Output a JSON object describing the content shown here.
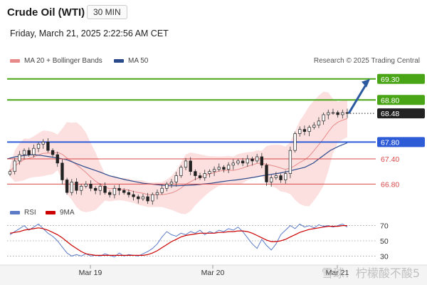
{
  "header": {
    "instrument": "Crude Oil (WTI)",
    "timeframe": "30 MIN",
    "datetime": "Friday, March 21, 2025 2:22:56 AM CET"
  },
  "legend": {
    "ma20_bb_label": "MA 20 + Bollinger Bands",
    "ma50_label": "MA 50",
    "credit": "Research © 2025 Trading Central",
    "ma20_color": "#e88a8a",
    "ma50_color": "#2b4a8b"
  },
  "rsi_legend": {
    "rsi_label": "RSI",
    "ma9_label": "9MA",
    "rsi_color": "#5b7bc7",
    "ma9_color": "#cc0000"
  },
  "watermark": "雪球：柠檬酸不酸5",
  "chart_data": [
    {
      "type": "line",
      "subtype": "candlestick",
      "x_tick_labels": [
        "Mar 19",
        "Mar 20",
        "Mar 21"
      ],
      "price_levels": [
        {
          "value": 69.3,
          "label": "69.30",
          "kind": "resistance",
          "color": "#4aa516"
        },
        {
          "value": 68.8,
          "label": "68.80",
          "kind": "resistance",
          "color": "#4aa516"
        },
        {
          "value": 68.48,
          "label": "68.48",
          "kind": "last_price",
          "color": "#222222"
        },
        {
          "value": 67.8,
          "label": "67.80",
          "kind": "pivot",
          "color": "#2e5bd6"
        },
        {
          "value": 67.4,
          "label": "67.40",
          "kind": "support",
          "color": "#d94a4a"
        },
        {
          "value": 66.8,
          "label": "66.80",
          "kind": "support",
          "color": "#d94a4a"
        }
      ],
      "close_series": [
        67.1,
        67.35,
        67.5,
        67.6,
        67.5,
        67.65,
        67.75,
        67.8,
        67.6,
        67.5,
        67.3,
        66.9,
        66.6,
        66.85,
        66.65,
        66.75,
        66.8,
        66.7,
        66.65,
        66.75,
        66.6,
        66.55,
        66.7,
        66.65,
        66.6,
        66.55,
        66.5,
        66.45,
        66.5,
        66.4,
        66.55,
        66.6,
        66.7,
        66.8,
        66.85,
        67.0,
        67.2,
        67.35,
        67.1,
        67.0,
        66.95,
        67.05,
        67.1,
        67.15,
        67.2,
        67.15,
        67.25,
        67.3,
        67.35,
        67.3,
        67.4,
        67.35,
        67.45,
        67.25,
        66.85,
        66.95,
        67.0,
        66.9,
        67.05,
        67.6,
        68.0,
        68.1,
        68.05,
        68.15,
        68.2,
        68.3,
        68.45,
        68.5,
        68.5,
        68.45,
        68.5,
        68.48
      ],
      "projection": {
        "from": 68.48,
        "to": 69.3
      },
      "ma50_series": [
        67.4,
        67.45,
        67.48,
        67.5,
        67.48,
        67.45,
        67.42,
        67.38,
        67.3,
        67.22,
        67.15,
        67.08,
        67.0,
        66.95,
        66.9,
        66.86,
        66.82,
        66.8,
        66.78,
        66.76,
        66.76,
        66.77,
        66.78,
        66.8,
        66.82,
        66.85,
        66.88,
        66.9,
        66.93,
        66.96,
        67.0,
        67.03,
        67.06,
        67.1,
        67.15,
        67.2,
        67.3,
        67.45,
        67.6,
        67.7,
        67.78
      ],
      "ylim": [
        66.4,
        69.55
      ],
      "rsi": {
        "levels": [
          {
            "value": 70,
            "label": "70"
          },
          {
            "value": 50,
            "label": "50"
          },
          {
            "value": 30,
            "label": "30"
          }
        ],
        "ylim": [
          22,
          78
        ],
        "rsi_values": [
          58,
          62,
          66,
          70,
          64,
          68,
          72,
          66,
          60,
          56,
          50,
          42,
          34,
          30,
          32,
          30,
          33,
          30,
          31,
          30,
          33,
          31,
          29,
          34,
          30,
          32,
          31,
          30,
          33,
          36,
          40,
          46,
          55,
          62,
          58,
          56,
          60,
          58,
          62,
          60,
          64,
          58,
          62,
          60,
          64,
          62,
          66,
          64,
          68,
          62,
          54,
          46,
          40,
          52,
          44,
          38,
          46,
          58,
          64,
          70,
          66,
          72,
          68,
          70,
          67,
          71,
          69,
          70,
          68,
          70,
          72,
          68
        ],
        "ma9_values": [
          60,
          61,
          62,
          64,
          65,
          66,
          67,
          66,
          64,
          61,
          58,
          54,
          49,
          44,
          40,
          36,
          33,
          32,
          31,
          31,
          31,
          31,
          31,
          31,
          31,
          31,
          31,
          31,
          31,
          32,
          34,
          37,
          41,
          45,
          49,
          52,
          55,
          57,
          58,
          59,
          60,
          60,
          60,
          60,
          61,
          61,
          62,
          62,
          63,
          63,
          62,
          60,
          57,
          54,
          51,
          49,
          49,
          50,
          52,
          55,
          58,
          61,
          63,
          65,
          66,
          67,
          68,
          69,
          69,
          69,
          70,
          70
        ]
      }
    }
  ]
}
